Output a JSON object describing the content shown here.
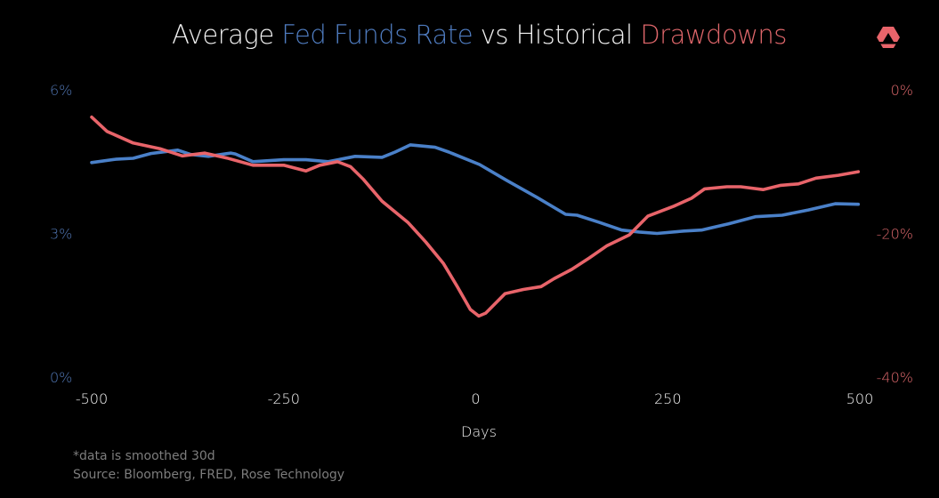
{
  "title": {
    "part1": "Average ",
    "part2": "Fed Funds Rate",
    "part3": " vs Historical ",
    "part4": "Drawdowns"
  },
  "logo": {
    "icon": "triangle-hexagon-logo-icon",
    "color": "#e8646a"
  },
  "colors": {
    "fed": "#4a80c8",
    "drawdown": "#e8646a",
    "left_axis": "#4f74b0",
    "right_axis": "#d9666a",
    "text": "#f2f2f2",
    "footnote": "#7d7d7d"
  },
  "footnote": {
    "line1": "*data is smoothed 30d",
    "line2": "Source: Bloomberg, FRED, Rose Technology"
  },
  "chart_data": {
    "type": "line",
    "title": "Average Fed Funds Rate vs Historical Drawdowns",
    "xlabel": "Days",
    "ylabel_left": "Fed Funds Rate",
    "ylabel_right": "Drawdown",
    "xlim": [
      -500,
      500
    ],
    "ylim_left": [
      0,
      6
    ],
    "ylim_right": [
      -40,
      0
    ],
    "x_ticks": [
      -500,
      -250,
      0,
      250,
      500
    ],
    "x_tick_labels": [
      "-500",
      "-250",
      "0",
      "250",
      "500"
    ],
    "y_left_ticks": [
      0,
      3,
      6
    ],
    "y_left_tick_labels": [
      "0%",
      "3%",
      "6%"
    ],
    "y_right_ticks": [
      -40,
      -20,
      0
    ],
    "y_right_tick_labels": [
      "-40%",
      "-20%",
      "0%"
    ],
    "grid": false,
    "legend": "none (series named by colored title words)",
    "series": [
      {
        "name": "Fed Funds Rate",
        "axis": "left",
        "x": [
          -500,
          -469,
          -446,
          -423,
          -388,
          -371,
          -348,
          -319,
          -313,
          -290,
          -250,
          -221,
          -192,
          -157,
          -122,
          -105,
          -85,
          -53,
          -35,
          5,
          40,
          80,
          117,
          132,
          161,
          190,
          213,
          236,
          271,
          294,
          329,
          364,
          399,
          433,
          468,
          498
        ],
        "values": [
          4.48,
          4.55,
          4.57,
          4.67,
          4.74,
          4.65,
          4.61,
          4.68,
          4.66,
          4.5,
          4.54,
          4.54,
          4.5,
          4.61,
          4.59,
          4.7,
          4.85,
          4.8,
          4.7,
          4.44,
          4.11,
          3.75,
          3.4,
          3.38,
          3.23,
          3.07,
          3.03,
          3.0,
          3.05,
          3.07,
          3.2,
          3.35,
          3.38,
          3.49,
          3.62,
          3.61
        ]
      },
      {
        "name": "Drawdown",
        "axis": "right",
        "x": [
          -500,
          -480,
          -446,
          -411,
          -382,
          -353,
          -324,
          -290,
          -250,
          -221,
          -203,
          -180,
          -163,
          -146,
          -122,
          -88,
          -65,
          -42,
          -24,
          -7,
          4,
          13,
          38,
          62,
          85,
          102,
          125,
          148,
          171,
          200,
          224,
          258,
          281,
          298,
          327,
          345,
          374,
          397,
          420,
          443,
          472,
          498
        ],
        "values": [
          -3.8,
          -5.8,
          -7.4,
          -8.2,
          -9.2,
          -8.8,
          -9.5,
          -10.5,
          -10.5,
          -11.3,
          -10.5,
          -10.0,
          -10.7,
          -12.5,
          -15.5,
          -18.5,
          -21.2,
          -24.2,
          -27.4,
          -30.6,
          -31.5,
          -31.1,
          -28.4,
          -27.8,
          -27.4,
          -26.3,
          -25.0,
          -23.4,
          -21.7,
          -20.2,
          -17.6,
          -16.2,
          -15.1,
          -13.8,
          -13.5,
          -13.5,
          -13.9,
          -13.3,
          -13.1,
          -12.3,
          -11.9,
          -11.4
        ]
      }
    ]
  }
}
